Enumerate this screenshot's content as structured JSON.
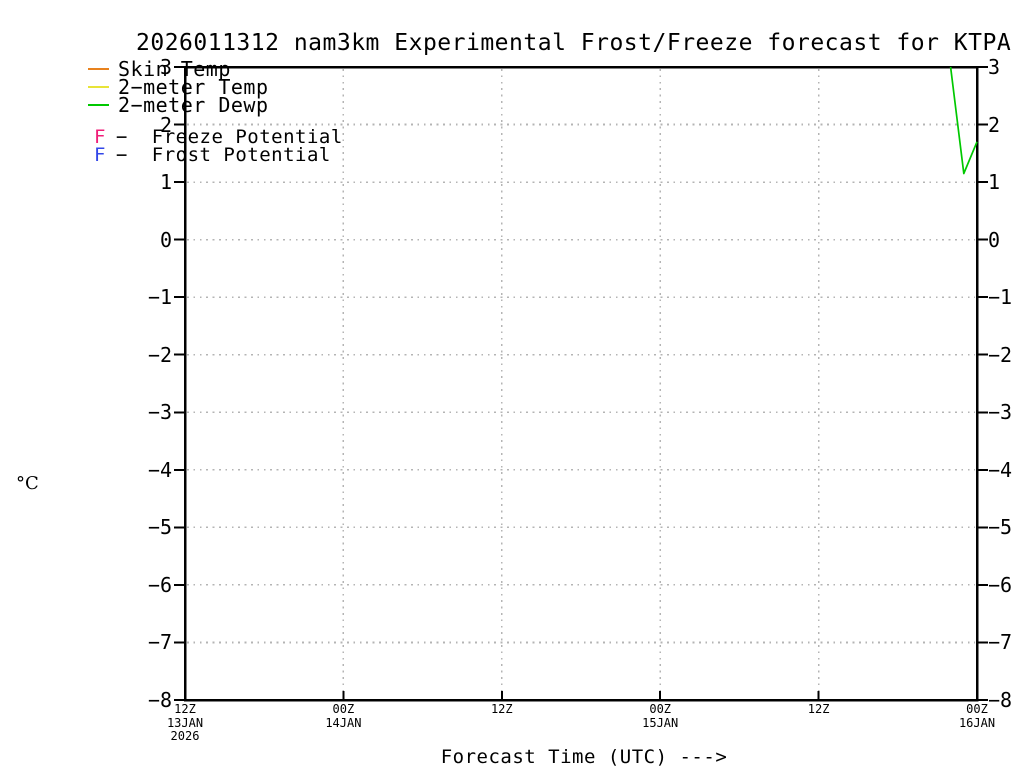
{
  "title": "2026011312 nam3km Experimental Frost/Freeze forecast for KTPA",
  "axes": {
    "ylabel": "°C",
    "xlabel": "Forecast Time (UTC) --->",
    "yticks": [
      {
        "v": 3,
        "label": "3"
      },
      {
        "v": 2,
        "label": "2"
      },
      {
        "v": 1,
        "label": "1"
      },
      {
        "v": 0,
        "label": "0"
      },
      {
        "v": -1,
        "label": "−1"
      },
      {
        "v": -2,
        "label": "−2"
      },
      {
        "v": -3,
        "label": "−3"
      },
      {
        "v": -4,
        "label": "−4"
      },
      {
        "v": -5,
        "label": "−5"
      },
      {
        "v": -6,
        "label": "−6"
      },
      {
        "v": -7,
        "label": "−7"
      },
      {
        "v": -8,
        "label": "−8"
      }
    ],
    "xticks": [
      {
        "hour": 0,
        "lines": [
          "12Z",
          "13JAN",
          "2026"
        ]
      },
      {
        "hour": 12,
        "lines": [
          "00Z",
          "14JAN"
        ]
      },
      {
        "hour": 24,
        "lines": [
          "12Z"
        ]
      },
      {
        "hour": 36,
        "lines": [
          "00Z",
          "15JAN"
        ]
      },
      {
        "hour": 48,
        "lines": [
          "12Z"
        ]
      },
      {
        "hour": 60,
        "lines": [
          "00Z",
          "16JAN"
        ]
      }
    ]
  },
  "legend": {
    "lines": [
      {
        "label": "Skin Temp",
        "color": "#E8821E"
      },
      {
        "label": "2−meter Temp",
        "color": "#E8E438"
      },
      {
        "label": "2−meter Dewp",
        "color": "#00C800"
      }
    ],
    "potentials": [
      {
        "letter": "F",
        "rest": "−  Freeze Potential",
        "color": "#F01E78"
      },
      {
        "letter": "F",
        "rest": "−  Frost Potential",
        "color": "#3246E8"
      }
    ]
  },
  "colors": {
    "axis": "#000000",
    "grid": "#b4b4b4",
    "background": "#ffffff",
    "skin_temp": "#E8821E",
    "two_meter_temp": "#E8E438",
    "two_meter_dewp": "#00C800",
    "freeze_potential": "#F01E78",
    "frost_potential": "#3246E8"
  },
  "chart_data": {
    "type": "line",
    "title": "2026011312 nam3km Experimental Frost/Freeze forecast for KTPA",
    "xlabel": "Forecast Time (UTC) --->",
    "ylabel": "°C",
    "ylim": [
      -8,
      3
    ],
    "x_range_hours": [
      0,
      60
    ],
    "x_start_label": "12Z 13JAN 2026",
    "x_end_label": "00Z 16JAN",
    "grid": true,
    "legend_position": "top-left",
    "series": [
      {
        "name": "Skin Temp",
        "color": "#E8821E",
        "points": []
      },
      {
        "name": "2-meter Temp",
        "color": "#E8E438",
        "points": []
      },
      {
        "name": "2-meter Dewp",
        "color": "#00C800",
        "points": [
          [
            58,
            3.0
          ],
          [
            59,
            1.15
          ],
          [
            60,
            1.7
          ]
        ]
      }
    ],
    "freeze_potential_marks": [],
    "frost_potential_marks": []
  }
}
